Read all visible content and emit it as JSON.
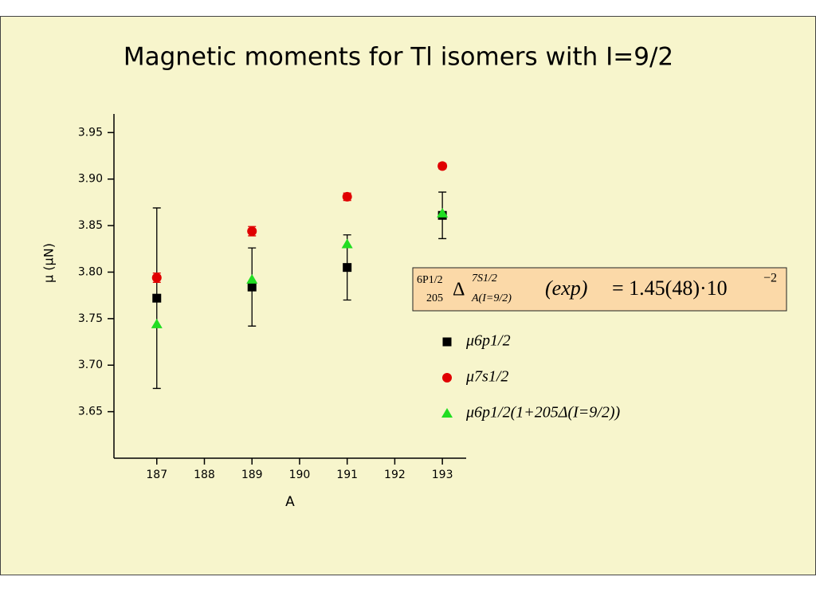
{
  "chart_data": {
    "type": "scatter",
    "title": "Magnetic moments for Tl isomers with I=9/2",
    "x_label": "A",
    "y_label": "μ (μN)",
    "x": [
      187,
      189,
      191,
      193
    ],
    "xlim": [
      186.1,
      193.5
    ],
    "xticks": [
      187,
      188,
      189,
      190,
      191,
      192,
      193
    ],
    "ylim": [
      3.6,
      3.97
    ],
    "yticks": [
      {
        "value": 3.65,
        "label": "3.65"
      },
      {
        "value": 3.7,
        "label": "3.70"
      },
      {
        "value": 3.75,
        "label": "3.75"
      },
      {
        "value": 3.8,
        "label": "3.80"
      },
      {
        "value": 3.85,
        "label": "3.85"
      },
      {
        "value": 3.9,
        "label": "3.90"
      },
      {
        "value": 3.95,
        "label": "3.95"
      }
    ],
    "series": [
      {
        "name": "μ6p1/2",
        "color": "#000000",
        "marker": "square",
        "values": [
          3.772,
          3.784,
          3.805,
          3.861
        ],
        "errors": [
          0.097,
          0.042,
          0.035,
          0.025
        ]
      },
      {
        "name": "μ7s1/2",
        "color": "#e00000",
        "marker": "circle",
        "values": [
          3.794,
          3.844,
          3.881,
          3.914
        ],
        "errors": [
          0.005,
          0.005,
          0.004,
          0.003
        ]
      },
      {
        "name": "μ6p1/2(1+205Δ(I=9/2))",
        "color": "#22dd22",
        "marker": "triangle",
        "values": [
          3.744,
          3.792,
          3.83,
          3.863
        ]
      }
    ],
    "annotation": {
      "sup_left": "6P1/2",
      "sub_left": "205",
      "symbol": "Δ",
      "sup_right": "7S1/2",
      "sub_right": "A(I=9/2)",
      "paren": "(exp)",
      "value": "= 1.45(48)·10",
      "exponent": "−2"
    }
  }
}
